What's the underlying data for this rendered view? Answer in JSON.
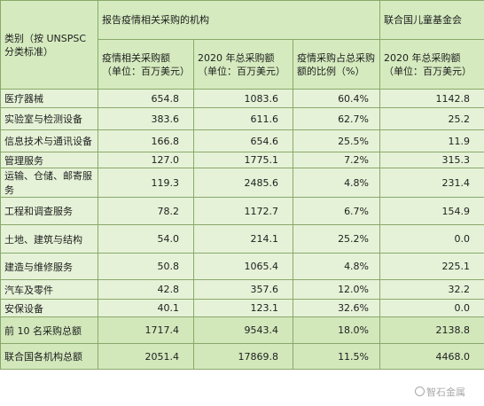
{
  "header": {
    "category_col": "类别（按 UNSPSC 分类标准）",
    "group_reporting": "报告疫情相关采购的机构",
    "group_unicef": "联合国儿童基金会",
    "col_covid": "疫情相关采购额\n（单位：百万美元）",
    "col_total_2020": "2020 年总采购额\n（单位：百万美元）",
    "col_share": "疫情采购占总采购额的比例（%）",
    "col_unicef_2020": "2020 年总采购额\n（单位：百万美元）"
  },
  "rows": [
    {
      "category": "医疗器械",
      "covid": "654.8",
      "total": "1083.6",
      "share": "60.4%",
      "unicef": "1142.8"
    },
    {
      "category": "实验室与检测设备",
      "covid": "383.6",
      "total": "611.6",
      "share": "62.7%",
      "unicef": "25.2"
    },
    {
      "category": "信息技术与通讯设备",
      "covid": "166.8",
      "total": "654.6",
      "share": "25.5%",
      "unicef": "11.9"
    },
    {
      "category": "管理服务",
      "covid": "127.0",
      "total": "1775.1",
      "share": "7.2%",
      "unicef": "315.3"
    },
    {
      "category": "运输、仓储、邮寄服务",
      "covid": "119.3",
      "total": "2485.6",
      "share": "4.8%",
      "unicef": "231.4"
    },
    {
      "category": "工程和调查服务",
      "covid": "78.2",
      "total": "1172.7",
      "share": "6.7%",
      "unicef": "154.9"
    },
    {
      "category": "土地、建筑与结构",
      "covid": "54.0",
      "total": "214.1",
      "share": "25.2%",
      "unicef": "0.0"
    },
    {
      "category": "建造与维修服务",
      "covid": "50.8",
      "total": "1065.4",
      "share": "4.8%",
      "unicef": "225.1"
    },
    {
      "category": "汽车及零件",
      "covid": "42.8",
      "total": "357.6",
      "share": "12.0%",
      "unicef": "32.2"
    },
    {
      "category": "安保设备",
      "covid": "40.1",
      "total": "123.1",
      "share": "32.6%",
      "unicef": "0.0"
    }
  ],
  "summary": [
    {
      "category": "前 10 名采购总额",
      "covid": "1717.4",
      "total": "9543.4",
      "share": "18.0%",
      "unicef": "2138.8"
    },
    {
      "category": "联合国各机构总额",
      "covid": "2051.4",
      "total": "17869.8",
      "share": "11.5%",
      "unicef": "4468.0"
    }
  ],
  "watermark": "智石金属"
}
